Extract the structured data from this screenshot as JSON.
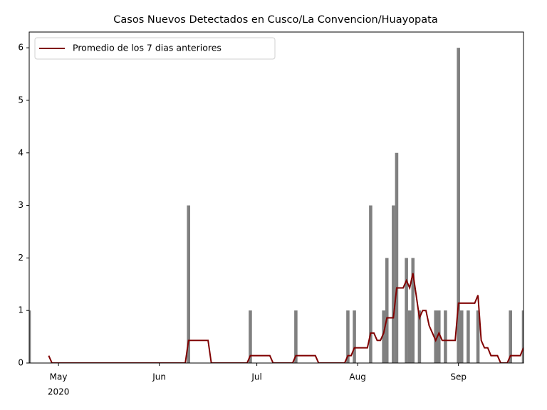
{
  "chart_data": {
    "type": "bar",
    "title": "Casos Nuevos Detectados en Cusco/La Convencion/Huayopata",
    "x": [
      0,
      1,
      2,
      3,
      4,
      5,
      6,
      7,
      8,
      9,
      10,
      11,
      12,
      13,
      14,
      15,
      16,
      17,
      18,
      19,
      20,
      21,
      22,
      23,
      24,
      25,
      26,
      27,
      28,
      29,
      30,
      31,
      32,
      33,
      34,
      35,
      36,
      37,
      38,
      39,
      40,
      41,
      42,
      43,
      44,
      45,
      46,
      47,
      48,
      49,
      50,
      51,
      52,
      53,
      54,
      55,
      56,
      57,
      58,
      59,
      60,
      61,
      62,
      63,
      64,
      65,
      66,
      67,
      68,
      69,
      70,
      71,
      72,
      73,
      74,
      75,
      76,
      77,
      78,
      79,
      80,
      81,
      82,
      83,
      84,
      85,
      86,
      87,
      88,
      89,
      90,
      91,
      92,
      93,
      94,
      95,
      96,
      97,
      98,
      99,
      100,
      101,
      102,
      103,
      104,
      105,
      106,
      107,
      108,
      109,
      110,
      111,
      112,
      113,
      114,
      115,
      116,
      117,
      118,
      119,
      120,
      121,
      122,
      123,
      124,
      125,
      126,
      127,
      128,
      129,
      130,
      131,
      132,
      133,
      134,
      135,
      136,
      137,
      138,
      139,
      140,
      141,
      142,
      143,
      144,
      145,
      146,
      147,
      148,
      149,
      150,
      151,
      152
    ],
    "series": [
      {
        "type": "bar",
        "color": "#808080",
        "values": [
          1,
          0,
          0,
          0,
          0,
          0,
          0,
          0,
          0,
          0,
          0,
          0,
          0,
          0,
          0,
          0,
          0,
          0,
          0,
          0,
          0,
          0,
          0,
          0,
          0,
          0,
          0,
          0,
          0,
          0,
          0,
          0,
          0,
          0,
          0,
          0,
          0,
          0,
          0,
          0,
          0,
          0,
          0,
          0,
          0,
          0,
          0,
          0,
          0,
          3,
          0,
          0,
          0,
          0,
          0,
          0,
          0,
          0,
          0,
          0,
          0,
          0,
          0,
          0,
          0,
          0,
          0,
          0,
          1,
          0,
          0,
          0,
          0,
          0,
          0,
          0,
          0,
          0,
          0,
          0,
          0,
          0,
          1,
          0,
          0,
          0,
          0,
          0,
          0,
          0,
          0,
          0,
          0,
          0,
          0,
          0,
          0,
          0,
          1,
          0,
          1,
          0,
          0,
          0,
          0,
          3,
          0,
          0,
          0,
          1,
          2,
          0,
          3,
          4,
          0,
          0,
          2,
          1,
          2,
          0,
          1,
          0,
          0,
          0,
          0,
          1,
          1,
          0,
          1,
          0,
          0,
          0,
          6,
          1,
          0,
          1,
          0,
          0,
          1,
          0,
          0,
          0,
          0,
          0,
          0,
          0,
          0,
          0,
          1,
          0,
          0,
          0,
          1
        ]
      },
      {
        "type": "line",
        "name": "Promedio de los 7 dias anteriores",
        "color": "#800000",
        "values": [
          null,
          null,
          null,
          null,
          null,
          null,
          0.14,
          0,
          0,
          0,
          0,
          0,
          0,
          0,
          0,
          0,
          0,
          0,
          0,
          0,
          0,
          0,
          0,
          0,
          0,
          0,
          0,
          0,
          0,
          0,
          0,
          0,
          0,
          0,
          0,
          0,
          0,
          0,
          0,
          0,
          0,
          0,
          0,
          0,
          0,
          0,
          0,
          0,
          0,
          0.43,
          0.43,
          0.43,
          0.43,
          0.43,
          0.43,
          0.43,
          0,
          0,
          0,
          0,
          0,
          0,
          0,
          0,
          0,
          0,
          0,
          0,
          0.14,
          0.14,
          0.14,
          0.14,
          0.14,
          0.14,
          0.14,
          0,
          0,
          0,
          0,
          0,
          0,
          0,
          0.14,
          0.14,
          0.14,
          0.14,
          0.14,
          0.14,
          0.14,
          0,
          0,
          0,
          0,
          0,
          0,
          0,
          0,
          0,
          0.14,
          0.14,
          0.29,
          0.29,
          0.29,
          0.29,
          0.29,
          0.57,
          0.57,
          0.43,
          0.43,
          0.57,
          0.86,
          0.86,
          0.86,
          1.43,
          1.43,
          1.43,
          1.57,
          1.43,
          1.71,
          1.29,
          0.86,
          1,
          1,
          0.71,
          0.57,
          0.43,
          0.57,
          0.43,
          0.43,
          0.43,
          0.43,
          0.43,
          1.14,
          1.14,
          1.14,
          1.14,
          1.14,
          1.14,
          1.29,
          0.43,
          0.29,
          0.29,
          0.14,
          0.14,
          0.14,
          0,
          0,
          0,
          0.14,
          0.14,
          0.14,
          0.14,
          0.29
        ]
      }
    ],
    "xlim": [
      0,
      152
    ],
    "xticks": [
      {
        "value": 9,
        "label": "May"
      },
      {
        "value": 40,
        "label": "Jun"
      },
      {
        "value": 70,
        "label": "Jul"
      },
      {
        "value": 101,
        "label": "Aug"
      },
      {
        "value": 132,
        "label": "Sep"
      }
    ],
    "xtick_year": "2020",
    "ylim": [
      0,
      6.3
    ],
    "yticks": [
      0,
      1,
      2,
      3,
      4,
      5,
      6
    ],
    "legend": "upper left"
  }
}
